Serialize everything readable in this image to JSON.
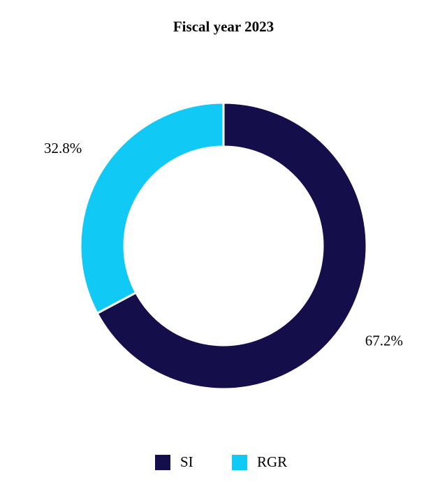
{
  "chart_data": {
    "type": "pie",
    "title": "Fiscal year 2023",
    "categories": [
      "SI",
      "RGR"
    ],
    "values": [
      67.2,
      32.8
    ],
    "value_labels": [
      "67.2%",
      "32.8%"
    ],
    "colors": [
      "#140f4b",
      "#11c9f5"
    ]
  }
}
